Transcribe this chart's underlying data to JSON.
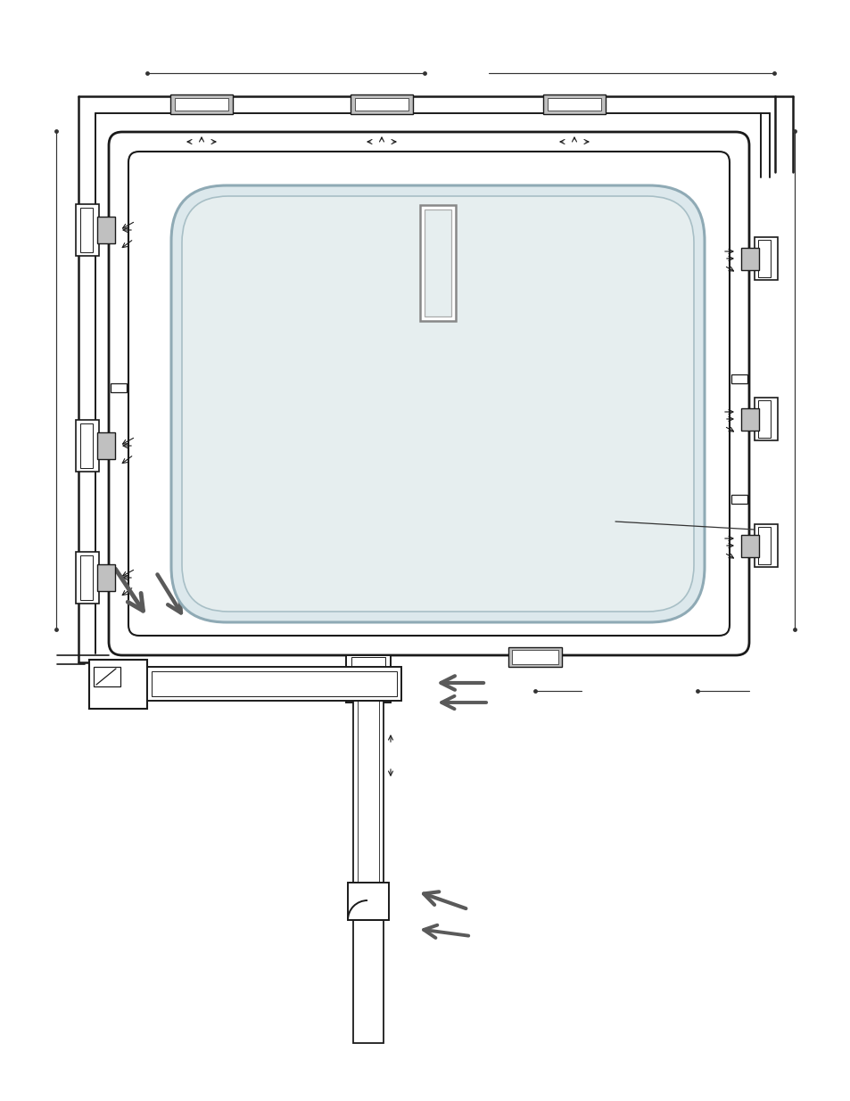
{
  "bg_color": "#ffffff",
  "lc": "#1a1a1a",
  "gray_arrow": "#5a5a5a",
  "pool_fill": "#dce8ec",
  "pool_inner": "#e6eeef",
  "pool_border": "#9ab0b8",
  "gray_fill": "#c0c0c0",
  "duct_inner": "#f0f0f0",
  "dim_color": "#444444",
  "white": "#ffffff",
  "lt_gray": "#e0e0e0"
}
